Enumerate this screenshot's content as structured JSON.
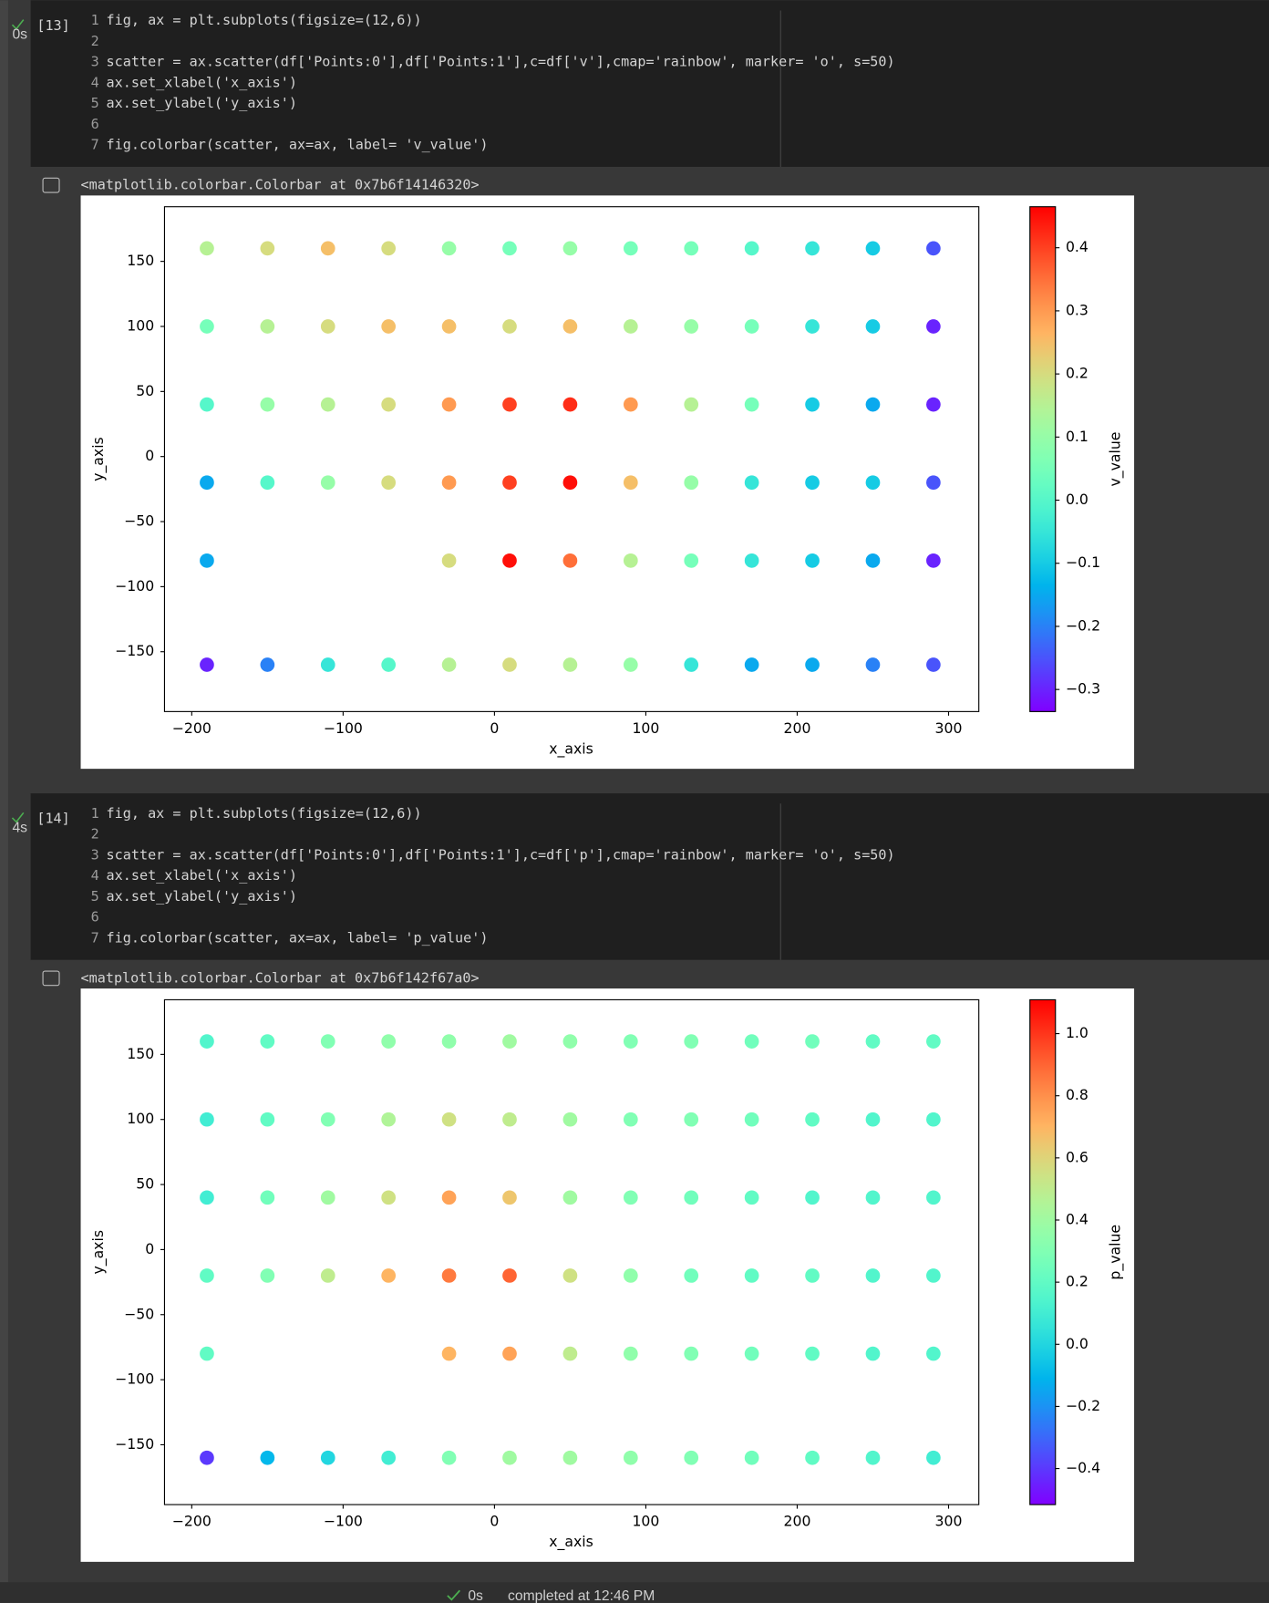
{
  "notebook": {
    "cells": [
      {
        "exec_count": "[13]",
        "duration": "0s",
        "code": [
          {
            "n": "1",
            "text": "fig, ax = plt.subplots(figsize=(12,6))"
          },
          {
            "n": "2"
          },
          {
            "n": "3",
            "text": "scatter = ax.scatter(df['Points:0'],df['Points:1'],c=df['v'],cmap='rainbow', marker= 'o', s=50)"
          },
          {
            "n": "4",
            "text": "ax.set_xlabel('x_axis')"
          },
          {
            "n": "5",
            "text": "ax.set_ylabel('y_axis')"
          },
          {
            "n": "6"
          },
          {
            "n": "7",
            "text": "fig.colorbar(scatter, ax=ax, label= 'v_value')"
          }
        ],
        "output_text": "<matplotlib.colorbar.Colorbar at 0x7b6f14146320>"
      },
      {
        "exec_count": "[14]",
        "duration": "4s",
        "code": [
          {
            "n": "1",
            "text": "fig, ax = plt.subplots(figsize=(12,6))"
          },
          {
            "n": "2"
          },
          {
            "n": "3",
            "text": "scatter = ax.scatter(df['Points:0'],df['Points:1'],c=df['p'],cmap='rainbow', marker= 'o', s=50)"
          },
          {
            "n": "4",
            "text": "ax.set_xlabel('x_axis')"
          },
          {
            "n": "5",
            "text": "ax.set_ylabel('y_axis')"
          },
          {
            "n": "6"
          },
          {
            "n": "7",
            "text": "fig.colorbar(scatter, ax=ax, label= 'p_value')"
          }
        ],
        "output_text": "<matplotlib.colorbar.Colorbar at 0x7b6f142f67a0>"
      }
    ]
  },
  "status": {
    "duration": "0s",
    "text": "completed at 12:46 PM"
  },
  "chart_data": [
    {
      "type": "scatter",
      "xlabel": "x_axis",
      "ylabel": "y_axis",
      "colorbar_label": "v_value",
      "cmap": "rainbow",
      "xlim": [
        -218,
        320
      ],
      "ylim": [
        -196,
        192
      ],
      "clim": [
        -0.335,
        0.465
      ],
      "xticks": [
        {
          "value": -200,
          "label": "−200"
        },
        {
          "value": -100,
          "label": "−100"
        },
        0,
        100,
        200,
        300
      ],
      "yticks": [
        {
          "value": -150,
          "label": "−150"
        },
        {
          "value": -100,
          "label": "−100"
        },
        {
          "value": -50,
          "label": "−50"
        },
        0,
        50,
        100,
        150
      ],
      "cticks": [
        {
          "value": -0.3,
          "label": "−0.3"
        },
        {
          "value": -0.2,
          "label": "−0.2"
        },
        {
          "value": -0.1,
          "label": "−0.1"
        },
        {
          "value": 0,
          "label": "0.0"
        },
        0.1,
        0.2,
        0.3,
        0.4
      ],
      "x": [
        -190,
        -150,
        -110,
        -70,
        -30,
        10,
        50,
        90,
        130,
        170,
        210,
        250,
        290,
        -190,
        -150,
        -110,
        -70,
        -30,
        10,
        50,
        90,
        130,
        170,
        210,
        250,
        290,
        -190,
        -150,
        -110,
        -70,
        -30,
        10,
        50,
        90,
        130,
        170,
        210,
        250,
        290,
        -190,
        -150,
        -110,
        -70,
        -30,
        10,
        50,
        90,
        130,
        170,
        210,
        250,
        290,
        -190,
        -30,
        10,
        50,
        90,
        130,
        170,
        210,
        250,
        290,
        -190,
        -150,
        -110,
        -70,
        -30,
        10,
        50,
        90,
        130,
        170,
        210,
        250,
        290
      ],
      "values": [
        160,
        160,
        160,
        160,
        160,
        160,
        160,
        160,
        160,
        160,
        160,
        160,
        160,
        100,
        100,
        100,
        100,
        100,
        100,
        100,
        100,
        100,
        100,
        100,
        100,
        100,
        40,
        40,
        40,
        40,
        40,
        40,
        40,
        40,
        40,
        40,
        40,
        40,
        40,
        -20,
        -20,
        -20,
        -20,
        -20,
        -20,
        -20,
        -20,
        -20,
        -20,
        -20,
        -20,
        -20,
        -80,
        -80,
        -80,
        -80,
        -80,
        -80,
        -80,
        -80,
        -80,
        -80,
        -160,
        -160,
        -160,
        -160,
        -160,
        -160,
        -160,
        -160,
        -160,
        -160,
        -160,
        -160,
        -160
      ],
      "c": [
        0.15,
        0.2,
        0.25,
        0.2,
        0.1,
        0.05,
        0.1,
        0.05,
        0.05,
        0.0,
        -0.05,
        -0.1,
        -0.25,
        0.05,
        0.15,
        0.2,
        0.25,
        0.25,
        0.2,
        0.25,
        0.15,
        0.1,
        0.05,
        -0.05,
        -0.1,
        -0.3,
        0.0,
        0.1,
        0.15,
        0.2,
        0.3,
        0.4,
        0.42,
        0.3,
        0.15,
        0.05,
        -0.1,
        -0.15,
        -0.3,
        -0.15,
        0.0,
        0.1,
        0.2,
        0.3,
        0.4,
        0.45,
        0.25,
        0.1,
        -0.05,
        -0.1,
        -0.1,
        -0.25,
        -0.15,
        0.2,
        0.45,
        0.35,
        0.15,
        0.05,
        -0.05,
        -0.1,
        -0.15,
        -0.3,
        -0.3,
        -0.2,
        -0.05,
        0.0,
        0.15,
        0.2,
        0.15,
        0.1,
        -0.05,
        -0.15,
        -0.15,
        -0.2,
        -0.25
      ]
    },
    {
      "type": "scatter",
      "xlabel": "x_axis",
      "ylabel": "y_axis",
      "colorbar_label": "p_value",
      "cmap": "rainbow",
      "xlim": [
        -218,
        320
      ],
      "ylim": [
        -196,
        192
      ],
      "clim": [
        -0.516,
        1.109
      ],
      "xticks": [
        {
          "value": -200,
          "label": "−200"
        },
        {
          "value": -100,
          "label": "−100"
        },
        0,
        100,
        200,
        300
      ],
      "yticks": [
        {
          "value": -150,
          "label": "−150"
        },
        {
          "value": -100,
          "label": "−100"
        },
        {
          "value": -50,
          "label": "−50"
        },
        0,
        50,
        100,
        150
      ],
      "cticks": [
        {
          "value": -0.4,
          "label": "−0.4"
        },
        {
          "value": -0.2,
          "label": "−0.2"
        },
        {
          "value": 0,
          "label": "0.0"
        },
        0.2,
        0.4,
        0.6,
        0.8,
        {
          "value": 1,
          "label": "1.0"
        }
      ],
      "x": [
        -190,
        -150,
        -110,
        -70,
        -30,
        10,
        50,
        90,
        130,
        170,
        210,
        250,
        290,
        -190,
        -150,
        -110,
        -70,
        -30,
        10,
        50,
        90,
        130,
        170,
        210,
        250,
        290,
        -190,
        -150,
        -110,
        -70,
        -30,
        10,
        50,
        90,
        130,
        170,
        210,
        250,
        290,
        -190,
        -150,
        -110,
        -70,
        -30,
        10,
        50,
        90,
        130,
        170,
        210,
        250,
        290,
        -190,
        -30,
        10,
        50,
        90,
        130,
        170,
        210,
        250,
        290,
        -190,
        -150,
        -110,
        -70,
        -30,
        10,
        50,
        90,
        130,
        170,
        210,
        250,
        290
      ],
      "values": [
        160,
        160,
        160,
        160,
        160,
        160,
        160,
        160,
        160,
        160,
        160,
        160,
        160,
        100,
        100,
        100,
        100,
        100,
        100,
        100,
        100,
        100,
        100,
        100,
        100,
        100,
        40,
        40,
        40,
        40,
        40,
        40,
        40,
        40,
        40,
        40,
        40,
        40,
        40,
        -20,
        -20,
        -20,
        -20,
        -20,
        -20,
        -20,
        -20,
        -20,
        -20,
        -20,
        -20,
        -20,
        -80,
        -80,
        -80,
        -80,
        -80,
        -80,
        -80,
        -80,
        -80,
        -80,
        -160,
        -160,
        -160,
        -160,
        -160,
        -160,
        -160,
        -160,
        -160,
        -160,
        -160,
        -160,
        -160
      ],
      "c": [
        0.15,
        0.2,
        0.3,
        0.35,
        0.35,
        0.4,
        0.35,
        0.3,
        0.3,
        0.25,
        0.25,
        0.2,
        0.2,
        0.1,
        0.2,
        0.3,
        0.45,
        0.55,
        0.5,
        0.4,
        0.3,
        0.3,
        0.25,
        0.2,
        0.15,
        0.15,
        0.1,
        0.25,
        0.4,
        0.55,
        0.75,
        0.65,
        0.4,
        0.3,
        0.25,
        0.2,
        0.15,
        0.15,
        0.15,
        0.2,
        0.3,
        0.5,
        0.7,
        0.85,
        0.9,
        0.55,
        0.35,
        0.25,
        0.2,
        0.2,
        0.15,
        0.15,
        0.2,
        0.7,
        0.75,
        0.5,
        0.35,
        0.3,
        0.25,
        0.2,
        0.15,
        0.15,
        -0.4,
        -0.1,
        0.0,
        0.1,
        0.3,
        0.4,
        0.4,
        0.35,
        0.3,
        0.25,
        0.2,
        0.15,
        0.1
      ]
    }
  ]
}
